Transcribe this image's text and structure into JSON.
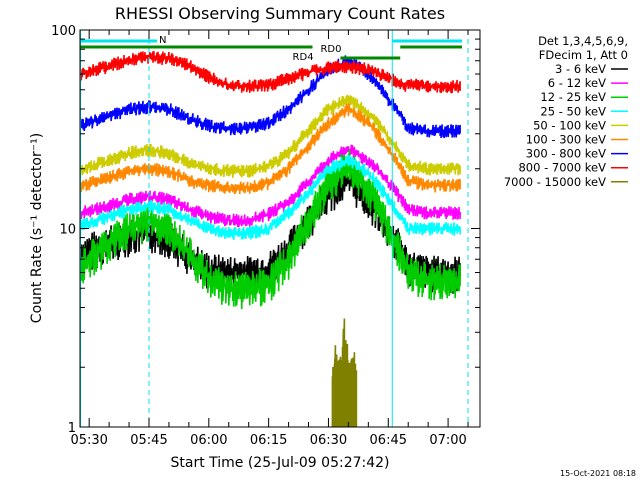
{
  "chart_data": {
    "type": "line",
    "title": "RHESSI Observing Summary Count Rates",
    "xlabel": "Start Time (25-Jul-09 05:27:42)",
    "ylabel": "Count Rate (s⁻¹ detector⁻¹)",
    "y_scale": "log",
    "ylim": [
      1,
      100
    ],
    "xlim": [
      "05:27:42",
      "07:08:00"
    ],
    "x_ticks": [
      "05:30",
      "05:45",
      "06:00",
      "06:15",
      "06:30",
      "06:45",
      "07:00"
    ],
    "y_ticks": [
      "1",
      "10",
      "100"
    ],
    "legend_header": [
      "Det 1,3,4,5,6,9,",
      "FDecim 1, Att 0"
    ],
    "legend_position": "right",
    "timestamp": "15-Oct-2021 08:18",
    "annotations": {
      "night_marker": "N",
      "rd0": "RD0",
      "rd4": "RD4"
    },
    "series": [
      {
        "name": "3 - 6 keV",
        "color": "#000000",
        "x": [
          "05:28",
          "05:35",
          "05:40",
          "05:45",
          "05:50",
          "05:55",
          "06:00",
          "06:05",
          "06:10",
          "06:15",
          "06:20",
          "06:25",
          "06:30",
          "06:35",
          "06:40",
          "06:45",
          "06:50",
          "06:55",
          "07:00",
          "07:03"
        ],
        "values": [
          7.5,
          8.5,
          9.2,
          9.5,
          9.0,
          7.2,
          6.2,
          6.0,
          6.0,
          6.3,
          7.8,
          11,
          15,
          17.5,
          14,
          10,
          6.5,
          6.0,
          6.0,
          6.0
        ]
      },
      {
        "name": "6 - 12 keV",
        "color": "#ff00ff",
        "x": [
          "05:28",
          "05:35",
          "05:40",
          "05:45",
          "05:50",
          "05:55",
          "06:00",
          "06:05",
          "06:10",
          "06:15",
          "06:20",
          "06:25",
          "06:30",
          "06:35",
          "06:40",
          "06:45",
          "06:50",
          "06:55",
          "07:00",
          "07:03"
        ],
        "values": [
          12,
          13,
          14,
          14.5,
          14,
          12.5,
          11.5,
          11,
          11,
          11.8,
          13.5,
          17,
          22,
          25,
          22,
          17,
          12.5,
          12,
          12,
          12
        ]
      },
      {
        "name": "12 - 25 keV",
        "color": "#00cc00",
        "x": [
          "05:28",
          "05:35",
          "05:40",
          "05:45",
          "05:50",
          "05:55",
          "06:00",
          "06:05",
          "06:10",
          "06:15",
          "06:20",
          "06:25",
          "06:30",
          "06:35",
          "06:40",
          "06:45",
          "06:50",
          "06:55",
          "07:00",
          "07:03"
        ],
        "values": [
          6.5,
          8.5,
          10,
          11,
          10,
          7.5,
          5.5,
          5.0,
          5.0,
          5.3,
          7.0,
          11,
          17,
          21,
          16,
          10,
          6.0,
          5.5,
          5.5,
          5.5
        ]
      },
      {
        "name": "25 - 50 keV",
        "color": "#00ffff",
        "x": [
          "05:28",
          "05:35",
          "05:40",
          "05:45",
          "05:50",
          "05:55",
          "06:00",
          "06:05",
          "06:10",
          "06:15",
          "06:20",
          "06:25",
          "06:30",
          "06:35",
          "06:40",
          "06:45",
          "06:50",
          "06:55",
          "07:00",
          "07:03"
        ],
        "values": [
          10.5,
          11.5,
          12.5,
          13,
          12.5,
          11,
          10,
          9.5,
          9.5,
          10,
          12,
          15,
          20,
          22,
          19,
          14,
          10,
          10,
          10,
          10
        ]
      },
      {
        "name": "50 - 100 keV",
        "color": "#cccc00",
        "x": [
          "05:28",
          "05:35",
          "05:40",
          "05:45",
          "05:50",
          "05:55",
          "06:00",
          "06:05",
          "06:10",
          "06:15",
          "06:20",
          "06:25",
          "06:30",
          "06:35",
          "06:40",
          "06:45",
          "06:50",
          "06:55",
          "07:00",
          "07:03"
        ],
        "values": [
          20,
          22,
          24,
          25,
          24,
          21.5,
          20,
          19.5,
          19.5,
          20.5,
          24,
          31,
          40,
          45,
          38,
          29,
          21,
          20,
          20,
          20
        ]
      },
      {
        "name": "100 - 300 keV",
        "color": "#ff8800",
        "x": [
          "05:28",
          "05:35",
          "05:40",
          "05:45",
          "05:50",
          "05:55",
          "06:00",
          "06:05",
          "06:10",
          "06:15",
          "06:20",
          "06:25",
          "06:30",
          "06:35",
          "06:40",
          "06:45",
          "06:50",
          "06:55",
          "07:00",
          "07:03"
        ],
        "values": [
          16.5,
          18,
          19.5,
          20,
          19.5,
          17.5,
          16.5,
          16,
          16,
          17,
          20,
          26,
          34,
          40,
          34,
          25,
          17.5,
          16.5,
          16.5,
          16.5
        ]
      },
      {
        "name": "300 - 800 keV",
        "color": "#0000ff",
        "x": [
          "05:28",
          "05:35",
          "05:40",
          "05:45",
          "05:50",
          "05:55",
          "06:00",
          "06:05",
          "06:10",
          "06:15",
          "06:20",
          "06:25",
          "06:30",
          "06:35",
          "06:40",
          "06:45",
          "06:50",
          "06:55",
          "07:00",
          "07:03"
        ],
        "values": [
          33,
          37,
          40,
          41,
          40,
          36,
          33,
          32,
          32,
          34,
          40,
          50,
          63,
          70,
          60,
          45,
          32,
          31,
          31,
          31
        ]
      },
      {
        "name": "800 - 7000 keV",
        "color": "#ff0000",
        "x": [
          "05:28",
          "05:35",
          "05:40",
          "05:45",
          "05:50",
          "05:55",
          "06:00",
          "06:05",
          "06:10",
          "06:15",
          "06:20",
          "06:26",
          "06:33",
          "06:39",
          "06:45",
          "06:48",
          "06:51",
          "06:55",
          "07:00",
          "07:03"
        ],
        "values": [
          60,
          66,
          71,
          73,
          72,
          66,
          58,
          53,
          52,
          53,
          57,
          62,
          66,
          64,
          58,
          53,
          53,
          52,
          52,
          52
        ]
      },
      {
        "name": "7000 - 15000 keV",
        "color": "#808000",
        "x": [
          "06:31",
          "06:32",
          "06:33",
          "06:34",
          "06:35",
          "06:36",
          "06:37"
        ],
        "values": [
          1.5,
          1.9,
          1.7,
          2.6,
          1.6,
          1.8,
          1.5
        ]
      }
    ]
  }
}
